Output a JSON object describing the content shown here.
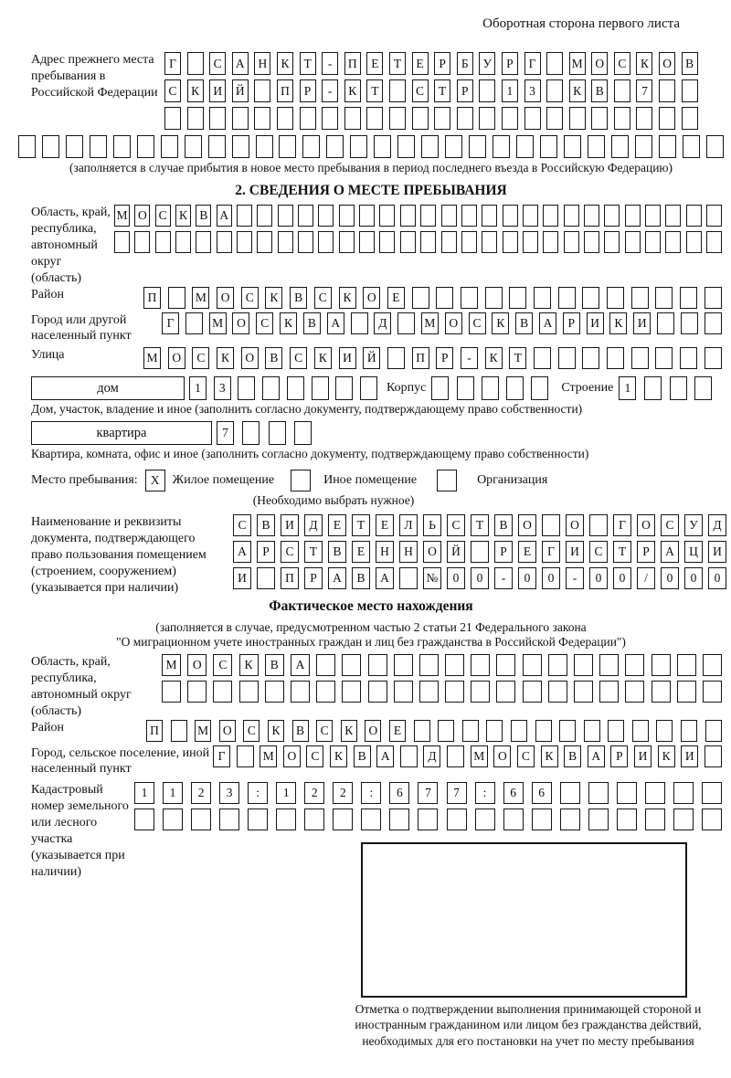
{
  "header": {
    "note": "Оборотная сторона первого листа"
  },
  "prev_address": {
    "label": "Адрес прежнего места пребывания в Российской Федерации",
    "row1": {
      "text": "Г САНКТ-ПЕТЕРБУРГ МОСКОВ",
      "len": 24
    },
    "row2": {
      "text": "СКИЙ ПР-КТ СТР 13 КВ 7",
      "len": 24
    },
    "row3": {
      "text": "",
      "len": 24
    },
    "row4": {
      "text": "",
      "len": 30
    },
    "note": "(заполняется в случае прибытия в новое место пребывания в период последнего въезда в Российскую Федерацию)"
  },
  "section2": {
    "title": "2. СВЕДЕНИЯ О МЕСТЕ ПРЕБЫВАНИЯ",
    "oblast": {
      "label": "Область, край, республика, автономный округ (область)",
      "row1": {
        "text": "МОСКВА",
        "len": 30
      },
      "row2": {
        "text": "",
        "len": 30
      }
    },
    "raion": {
      "label": "Район",
      "row": {
        "text": "П МОСКВСКОЕ",
        "len": 24
      }
    },
    "gorod": {
      "label": "Город или другой населенный пункт",
      "row": {
        "text": "Г МОСКВА Д МОСКВАРИКИ",
        "len": 24
      }
    },
    "ulitsa": {
      "label": "Улица",
      "row": {
        "text": "МОСКОВСКИЙ ПР-КТ",
        "len": 24
      }
    },
    "dom": {
      "box_label": "дом",
      "cells": {
        "text": "13",
        "len": 8
      },
      "korpus_label": "Корпус",
      "korpus_cells": {
        "text": "",
        "len": 5
      },
      "stroenie_label": "Строение",
      "stroenie_cells": {
        "text": "1",
        "len": 4
      },
      "note": "Дом, участок, владение и иное (заполнить согласно документу, подтверждающему право собственности)"
    },
    "kvartira": {
      "box_label": "квартира",
      "cells": {
        "text": "7",
        "len": 4
      },
      "note": "Квартира, комната, офис и иное (заполнить согласно документу, подтверждающему право собственности)"
    },
    "mesto": {
      "label": "Место пребывания:",
      "opt1": {
        "cell": {
          "text": "X",
          "len": 1
        },
        "label": "Жилое помещение"
      },
      "opt2": {
        "cell": {
          "text": "",
          "len": 1
        },
        "label": "Иное помещение"
      },
      "opt3": {
        "cell": {
          "text": "",
          "len": 1
        },
        "label": "Организация"
      },
      "note": "(Необходимо выбрать нужное)"
    },
    "doc": {
      "label": "Наименование и реквизиты документа, подтверждающего право пользования помещением (строением, сооружением) (указывается при наличии)",
      "row1": {
        "text": "СВИДЕТЕЛЬСТВО О ГОСУД",
        "len": 21
      },
      "row2": {
        "text": "АРСТВЕННОЙ РЕГИСТРАЦИ",
        "len": 21
      },
      "row3": {
        "text": "И ПРАВА №00-00-00/000",
        "len": 21
      }
    }
  },
  "fact": {
    "title": "Фактическое место нахождения",
    "note1": "(заполняется в случае, предусмотренном частью 2 статьи 21 Федерального закона",
    "note2": "\"О миграционном учете иностранных граждан и лиц без гражданства в Российской Федерации\")",
    "oblast": {
      "label": "Область, край, республика, автономный округ (область)",
      "row1": {
        "text": "МОСКВА",
        "len": 22
      },
      "row2": {
        "text": "",
        "len": 22
      }
    },
    "raion": {
      "label": "Район",
      "row": {
        "text": "П МОСКВСКОЕ",
        "len": 24
      }
    },
    "gorod": {
      "label": "Город, сельское поселение, иной населенный пункт",
      "row": {
        "text": "Г МОСКВА Д МОСКВАРИКИ",
        "len": 22
      }
    },
    "kadastr": {
      "label": "Кадастровый номер земельного или лесного участка (указывается при наличии)",
      "row1": {
        "text": "1123:122:677:66",
        "len": 21
      },
      "row2": {
        "text": "",
        "len": 21
      }
    }
  },
  "stamp": {
    "note": "Отметка о подтверждении выполнения принимающей стороной и иностранным гражданином или лицом без гражданства действий, необходимых для его постановки на учет по месту пребывания"
  }
}
